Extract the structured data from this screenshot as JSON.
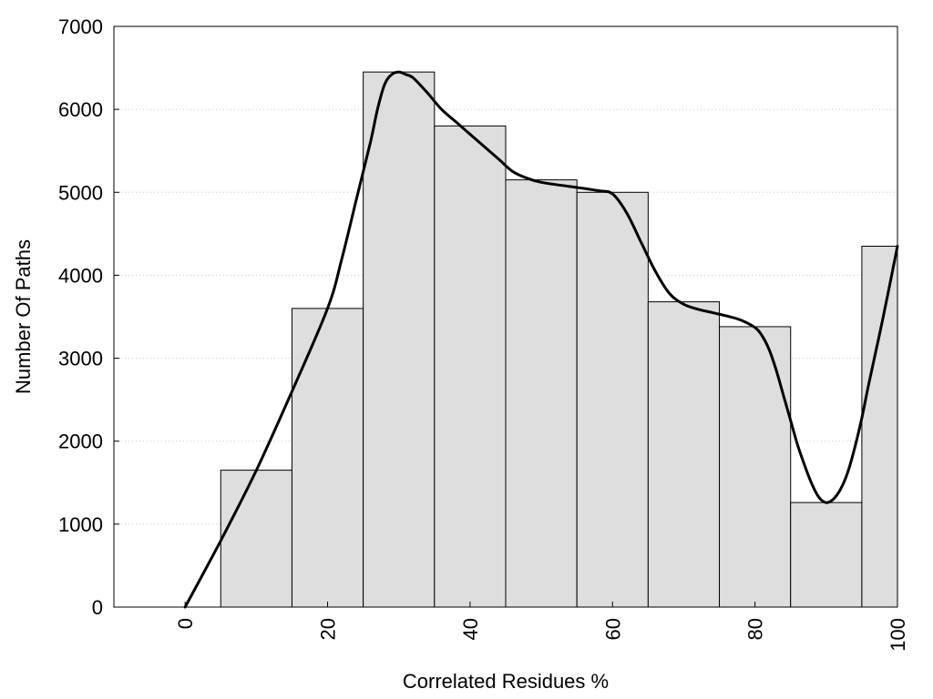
{
  "chart_data": {
    "type": "bar",
    "title": "",
    "xlabel": "Correlated Residues %",
    "ylabel": "Number Of Paths",
    "xlim": [
      -10,
      100
    ],
    "ylim": [
      0,
      7000
    ],
    "x_ticks": [
      0,
      20,
      40,
      60,
      80,
      100
    ],
    "y_ticks": [
      0,
      1000,
      2000,
      3000,
      4000,
      5000,
      6000,
      7000
    ],
    "grid": "y-dotted",
    "bin_width": 10,
    "bar_color": "#dedede",
    "line_color": "#000000",
    "bars": [
      {
        "x": 10,
        "value": 1650
      },
      {
        "x": 20,
        "value": 3600
      },
      {
        "x": 30,
        "value": 6450
      },
      {
        "x": 40,
        "value": 5800
      },
      {
        "x": 50,
        "value": 5150
      },
      {
        "x": 60,
        "value": 5000
      },
      {
        "x": 70,
        "value": 3680
      },
      {
        "x": 80,
        "value": 3380
      },
      {
        "x": 90,
        "value": 1260
      },
      {
        "x": 100,
        "value": 4350
      }
    ],
    "curve": {
      "x": [
        0,
        5,
        10,
        15,
        20,
        22,
        24,
        26,
        27,
        28,
        29,
        30,
        31,
        32,
        34,
        36,
        38,
        40,
        44,
        46,
        48,
        50,
        54,
        58,
        60,
        62,
        64,
        66,
        68,
        70,
        72,
        74,
        76,
        78,
        80,
        81,
        82,
        83,
        84,
        85,
        86,
        87,
        88,
        89,
        90,
        91,
        92,
        93,
        94,
        95,
        96,
        98,
        100
      ],
      "y": [
        0,
        800,
        1650,
        2600,
        3600,
        4200,
        4900,
        5600,
        6000,
        6300,
        6420,
        6450,
        6420,
        6380,
        6200,
        6000,
        5850,
        5700,
        5400,
        5250,
        5170,
        5120,
        5070,
        5020,
        4980,
        4750,
        4400,
        4050,
        3780,
        3650,
        3590,
        3550,
        3510,
        3460,
        3370,
        3270,
        3100,
        2850,
        2550,
        2250,
        1950,
        1700,
        1480,
        1320,
        1260,
        1300,
        1420,
        1620,
        1920,
        2280,
        2700,
        3500,
        4350
      ]
    }
  }
}
